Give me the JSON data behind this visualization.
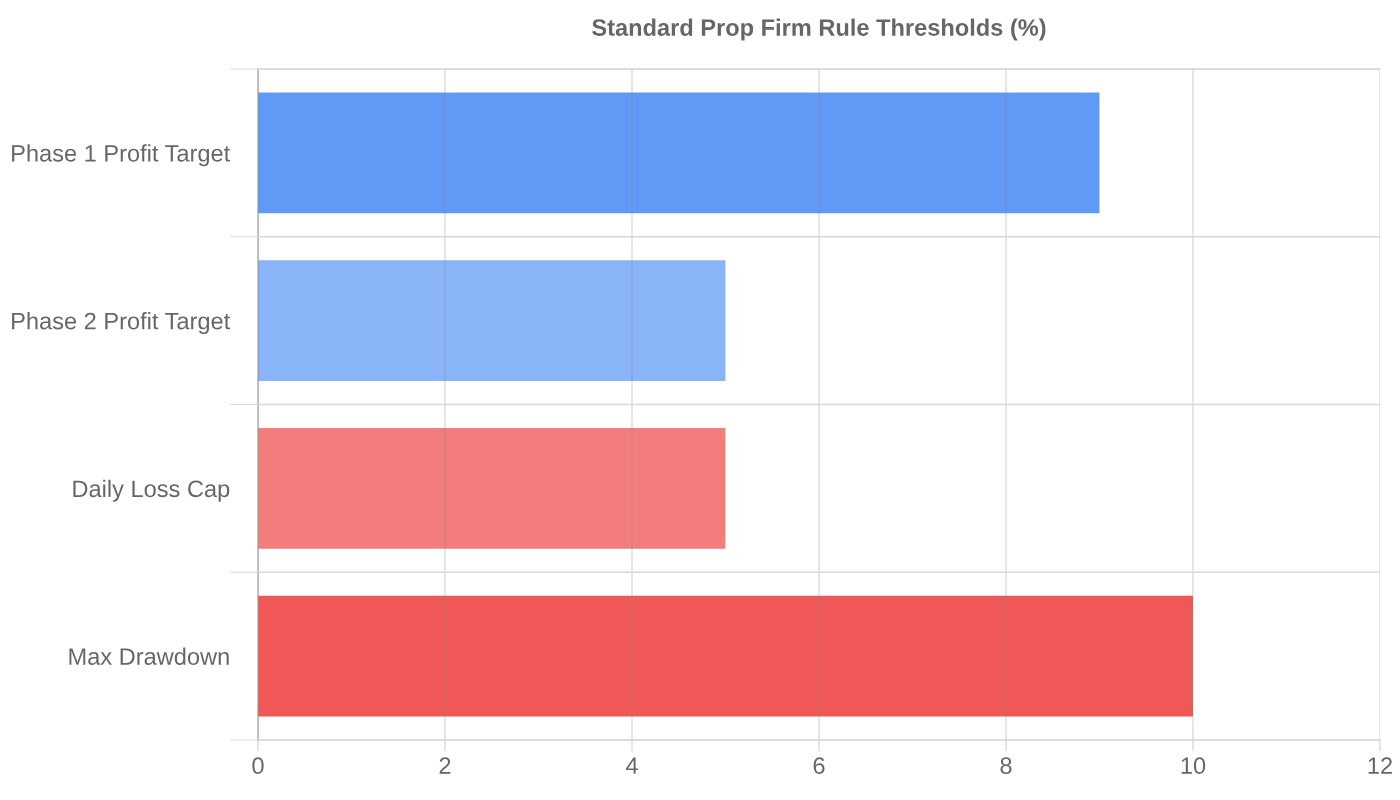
{
  "chart_data": {
    "type": "bar",
    "orientation": "horizontal",
    "title": "Standard Prop Firm Rule Thresholds (%)",
    "categories": [
      "Phase 1 Profit Target",
      "Phase 2 Profit Target",
      "Daily Loss Cap",
      "Max Drawdown"
    ],
    "values": [
      9,
      5,
      5,
      10
    ],
    "colors": [
      "#6199f7",
      "#8ab4f8",
      "#f37d7d",
      "#f05757"
    ],
    "xlim": [
      0,
      12
    ],
    "xticks": [
      0,
      2,
      4,
      6,
      8,
      10,
      12
    ],
    "grid": true
  }
}
